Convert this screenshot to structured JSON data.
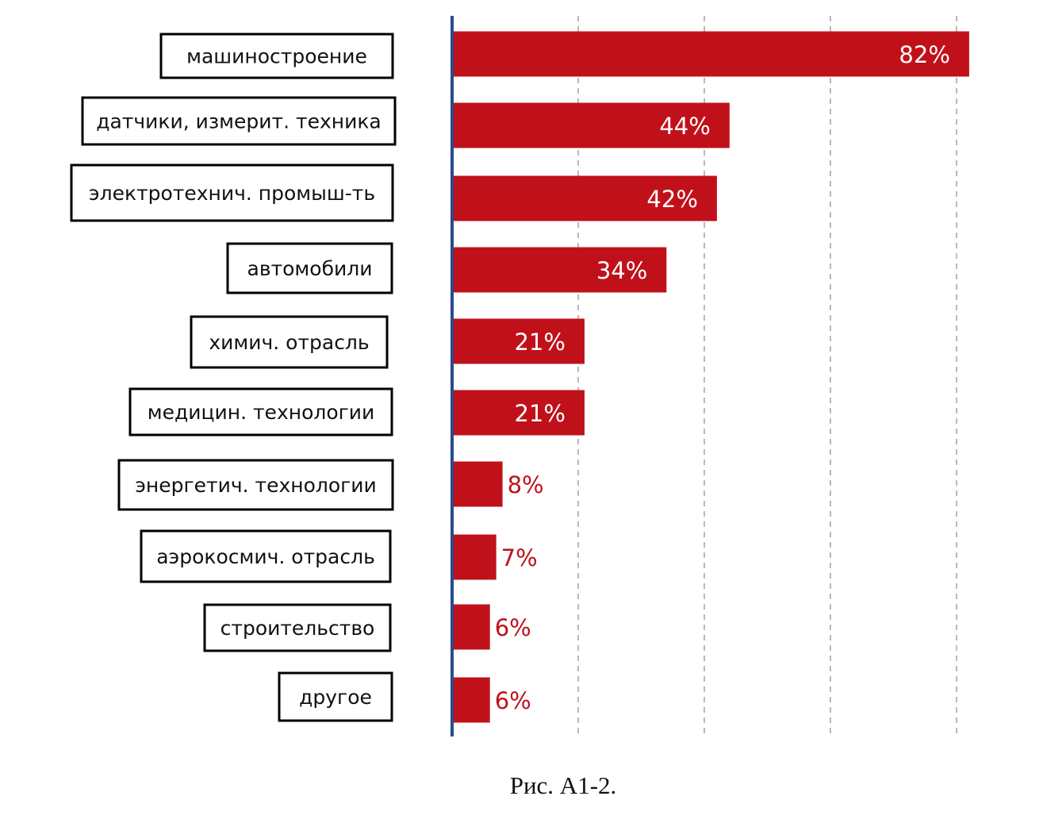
{
  "caption": "Рис. А1-2.",
  "chart_data": {
    "type": "bar",
    "orientation": "horizontal",
    "categories": [
      "машиностроение",
      "датчики, измерит. техника",
      "электротехнич. промыш-ть",
      "автомобили",
      "химич. отрасль",
      "медицин. технологии",
      "энергетич. технологии",
      "аэрокосмич. отрасль",
      "строительство",
      "другое"
    ],
    "values": [
      82,
      44,
      42,
      34,
      21,
      21,
      8,
      7,
      6,
      6
    ],
    "value_labels": [
      "82%",
      "44%",
      "42%",
      "34%",
      "21%",
      "21%",
      "8%",
      "7%",
      "6%",
      "6%"
    ],
    "unit": "%",
    "xlim": [
      0,
      80
    ],
    "grid": true,
    "bar_color": "#c0111a",
    "axis_color": "#2b4a8a",
    "label_inside_color": "#ffffff",
    "label_outside_color": "#c0111a"
  }
}
